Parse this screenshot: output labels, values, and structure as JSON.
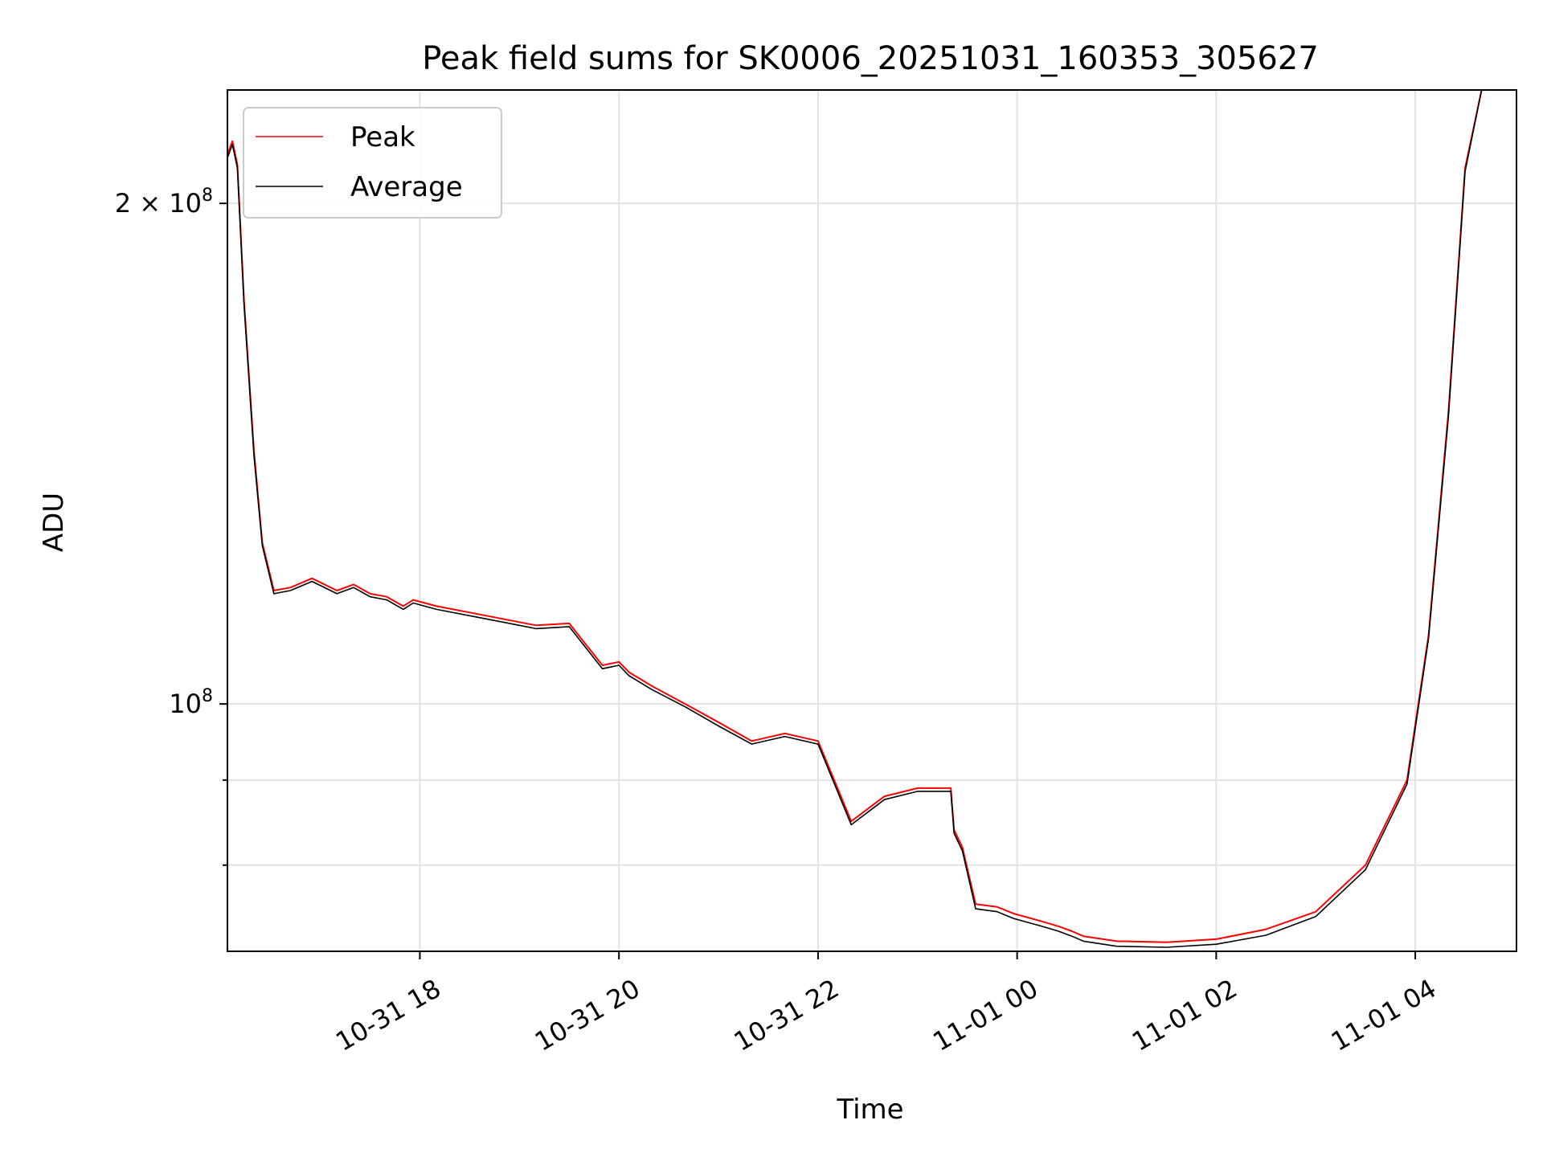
{
  "chart_data": {
    "type": "line",
    "title": "Peak field sums for SK0006_20251031_160353_305627",
    "xlabel": "Time",
    "ylabel": "ADU",
    "x_scale": "time",
    "y_scale": "log",
    "xlim": [
      "2025-10-31 16:04",
      "2025-11-01 05:01"
    ],
    "ylim": [
      71000000,
      234000000
    ],
    "x_ticks": [
      "10-31 18",
      "10-31 20",
      "10-31 22",
      "11-01 00",
      "11-01 02",
      "11-01 04"
    ],
    "x_tick_values": [
      "2025-10-31 18:00",
      "2025-10-31 20:00",
      "2025-10-31 22:00",
      "2025-11-01 00:00",
      "2025-11-01 02:00",
      "2025-11-01 04:00"
    ],
    "y_major_ticks": [
      {
        "value": 200000000,
        "label_base": "2 × 10",
        "label_exp": "8"
      },
      {
        "value": 100000000,
        "label_base": "10",
        "label_exp": "8"
      }
    ],
    "y_minor_ticks": [
      90000000,
      80000000,
      70000000
    ],
    "grid": true,
    "legend_placement": "upper-left",
    "series": [
      {
        "name": "Peak",
        "color": "#ff0000",
        "x": [
          "2025-10-31 16:04",
          "2025-10-31 16:07",
          "2025-10-31 16:10",
          "2025-10-31 16:14",
          "2025-10-31 16:20",
          "2025-10-31 16:25",
          "2025-10-31 16:32",
          "2025-10-31 16:42",
          "2025-10-31 16:55",
          "2025-10-31 17:10",
          "2025-10-31 17:20",
          "2025-10-31 17:30",
          "2025-10-31 17:40",
          "2025-10-31 17:50",
          "2025-10-31 17:56",
          "2025-10-31 18:10",
          "2025-10-31 18:30",
          "2025-10-31 18:50",
          "2025-10-31 19:10",
          "2025-10-31 19:30",
          "2025-10-31 19:50",
          "2025-10-31 20:00",
          "2025-10-31 20:06",
          "2025-10-31 20:20",
          "2025-10-31 20:40",
          "2025-10-31 21:00",
          "2025-10-31 21:20",
          "2025-10-31 21:40",
          "2025-10-31 22:00",
          "2025-10-31 22:20",
          "2025-10-31 22:40",
          "2025-10-31 23:00",
          "2025-10-31 23:20",
          "2025-10-31 23:22",
          "2025-10-31 23:27",
          "2025-10-31 23:35",
          "2025-10-31 23:48",
          "2025-10-31 23:58",
          "2025-11-01 00:15",
          "2025-11-01 00:25",
          "2025-11-01 00:33",
          "2025-11-01 00:40",
          "2025-11-01 01:00",
          "2025-11-01 01:30",
          "2025-11-01 02:00",
          "2025-11-01 02:30",
          "2025-11-01 03:00",
          "2025-11-01 03:30",
          "2025-11-01 03:55",
          "2025-11-01 04:08",
          "2025-11-01 04:20",
          "2025-11-01 04:30",
          "2025-11-01 04:40",
          "2025-11-01 04:43",
          "2025-11-01 05:01"
        ],
        "values": [
          214000000,
          218000000,
          211000000,
          175000000,
          142000000,
          125000000,
          117000000,
          117500000,
          119000000,
          117000000,
          118000000,
          116500000,
          116000000,
          114500000,
          115500000,
          114500000,
          113500000,
          112500000,
          111500000,
          111800000,
          105500000,
          106000000,
          104500000,
          102500000,
          100000000,
          97500000,
          95000000,
          96000000,
          95000000,
          85000000,
          88000000,
          89000000,
          89000000,
          84000000,
          82000000,
          75800000,
          75500000,
          74800000,
          74000000,
          73500000,
          73000000,
          72500000,
          72000000,
          71900000,
          72200000,
          73200000,
          75000000,
          80000000,
          90000000,
          110000000,
          150000000,
          210000000,
          234000000,
          234000000,
          234000000
        ]
      },
      {
        "name": "Average",
        "color": "#000000",
        "x": [
          "2025-10-31 16:04",
          "2025-10-31 16:07",
          "2025-10-31 16:10",
          "2025-10-31 16:14",
          "2025-10-31 16:20",
          "2025-10-31 16:25",
          "2025-10-31 16:32",
          "2025-10-31 16:42",
          "2025-10-31 16:55",
          "2025-10-31 17:10",
          "2025-10-31 17:20",
          "2025-10-31 17:30",
          "2025-10-31 17:40",
          "2025-10-31 17:50",
          "2025-10-31 17:56",
          "2025-10-31 18:10",
          "2025-10-31 18:30",
          "2025-10-31 18:50",
          "2025-10-31 19:10",
          "2025-10-31 19:30",
          "2025-10-31 19:50",
          "2025-10-31 20:00",
          "2025-10-31 20:06",
          "2025-10-31 20:20",
          "2025-10-31 20:40",
          "2025-10-31 21:00",
          "2025-10-31 21:20",
          "2025-10-31 21:40",
          "2025-10-31 22:00",
          "2025-10-31 22:20",
          "2025-10-31 22:40",
          "2025-10-31 23:00",
          "2025-10-31 23:20",
          "2025-10-31 23:22",
          "2025-10-31 23:27",
          "2025-10-31 23:35",
          "2025-10-31 23:48",
          "2025-10-31 23:58",
          "2025-11-01 00:15",
          "2025-11-01 00:25",
          "2025-11-01 00:33",
          "2025-11-01 00:40",
          "2025-11-01 01:00",
          "2025-11-01 01:30",
          "2025-11-01 02:00",
          "2025-11-01 02:30",
          "2025-11-01 03:00",
          "2025-11-01 03:30",
          "2025-11-01 03:55",
          "2025-11-01 04:08",
          "2025-11-01 04:20",
          "2025-11-01 04:30",
          "2025-11-01 04:40",
          "2025-11-01 04:43",
          "2025-11-01 05:01"
        ],
        "values": [
          213000000,
          217000000,
          210000000,
          174000000,
          141000000,
          124500000,
          116500000,
          117000000,
          118500000,
          116500000,
          117500000,
          116000000,
          115500000,
          114000000,
          115000000,
          114000000,
          113000000,
          112000000,
          111000000,
          111300000,
          105000000,
          105500000,
          104000000,
          102000000,
          99600000,
          97000000,
          94600000,
          95600000,
          94600000,
          84600000,
          87600000,
          88600000,
          88600000,
          83600000,
          81600000,
          75300000,
          75000000,
          74300000,
          73500000,
          73000000,
          72500000,
          72000000,
          71500000,
          71400000,
          71700000,
          72600000,
          74500000,
          79500000,
          89500000,
          109500000,
          149000000,
          209000000,
          234000000,
          234000000,
          234000000
        ]
      }
    ]
  }
}
